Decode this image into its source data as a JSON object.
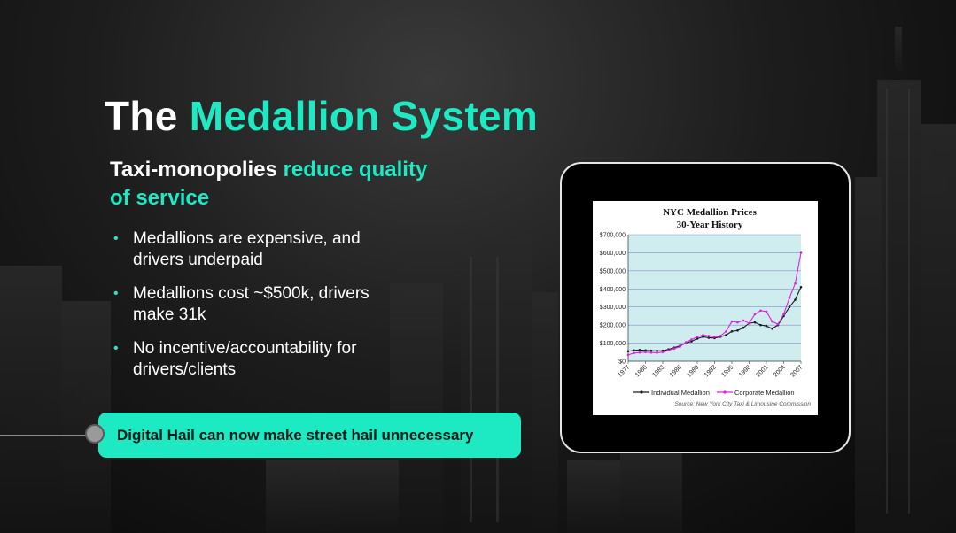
{
  "slide": {
    "title_part1": "The",
    "title_part2": "Medallion System",
    "subtitle_part1": "Taxi-monopolies",
    "subtitle_part2": "reduce quality of service",
    "bullets": [
      {
        "text": "Medallions are expensive, and drivers underpaid"
      },
      {
        "text": "Medallions cost ~$500k, drivers make 31k"
      },
      {
        "text": "No incentive/accountability for drivers/clients"
      }
    ],
    "callout": "Digital Hail can now make street hail unnecessary",
    "colors": {
      "accent": "#1de9c3",
      "background": "#111111",
      "text": "#ffffff"
    }
  },
  "chart_data": {
    "type": "line",
    "title": "NYC Medallion Prices",
    "subtitle": "30-Year History",
    "xlabel": "",
    "ylabel": "",
    "ylim": [
      0,
      700000
    ],
    "yticks": [
      "$0",
      "$100,000",
      "$200,000",
      "$300,000",
      "$400,000",
      "$500,000",
      "$600,000",
      "$700,000"
    ],
    "xticks": [
      "1977",
      "1980",
      "1983",
      "1986",
      "1989",
      "1992",
      "1995",
      "1998",
      "2001",
      "2004",
      "2007"
    ],
    "x": [
      1977,
      1978,
      1979,
      1980,
      1981,
      1982,
      1983,
      1984,
      1985,
      1986,
      1987,
      1988,
      1989,
      1990,
      1991,
      1992,
      1993,
      1994,
      1995,
      1996,
      1997,
      1998,
      1999,
      2000,
      2001,
      2002,
      2003,
      2004,
      2005,
      2006,
      2007
    ],
    "series": [
      {
        "name": "Individual Medallion",
        "color": "#1a1a1a",
        "values": [
          55000,
          60000,
          62000,
          60000,
          58000,
          57000,
          58000,
          65000,
          75000,
          85000,
          100000,
          110000,
          125000,
          135000,
          130000,
          128000,
          135000,
          145000,
          165000,
          170000,
          185000,
          210000,
          215000,
          200000,
          195000,
          180000,
          200000,
          250000,
          300000,
          340000,
          410000
        ]
      },
      {
        "name": "Corporate Medallion",
        "color": "#e020e0",
        "values": [
          35000,
          45000,
          48000,
          50000,
          48000,
          47000,
          50000,
          60000,
          70000,
          80000,
          105000,
          120000,
          135000,
          145000,
          140000,
          135000,
          140000,
          165000,
          220000,
          215000,
          225000,
          210000,
          260000,
          280000,
          275000,
          220000,
          205000,
          260000,
          350000,
          430000,
          600000
        ]
      }
    ],
    "legend": [
      "Individual Medallion",
      "Corporate Medallion"
    ],
    "source": "Source: New York City Taxi & Limousine Commission"
  }
}
